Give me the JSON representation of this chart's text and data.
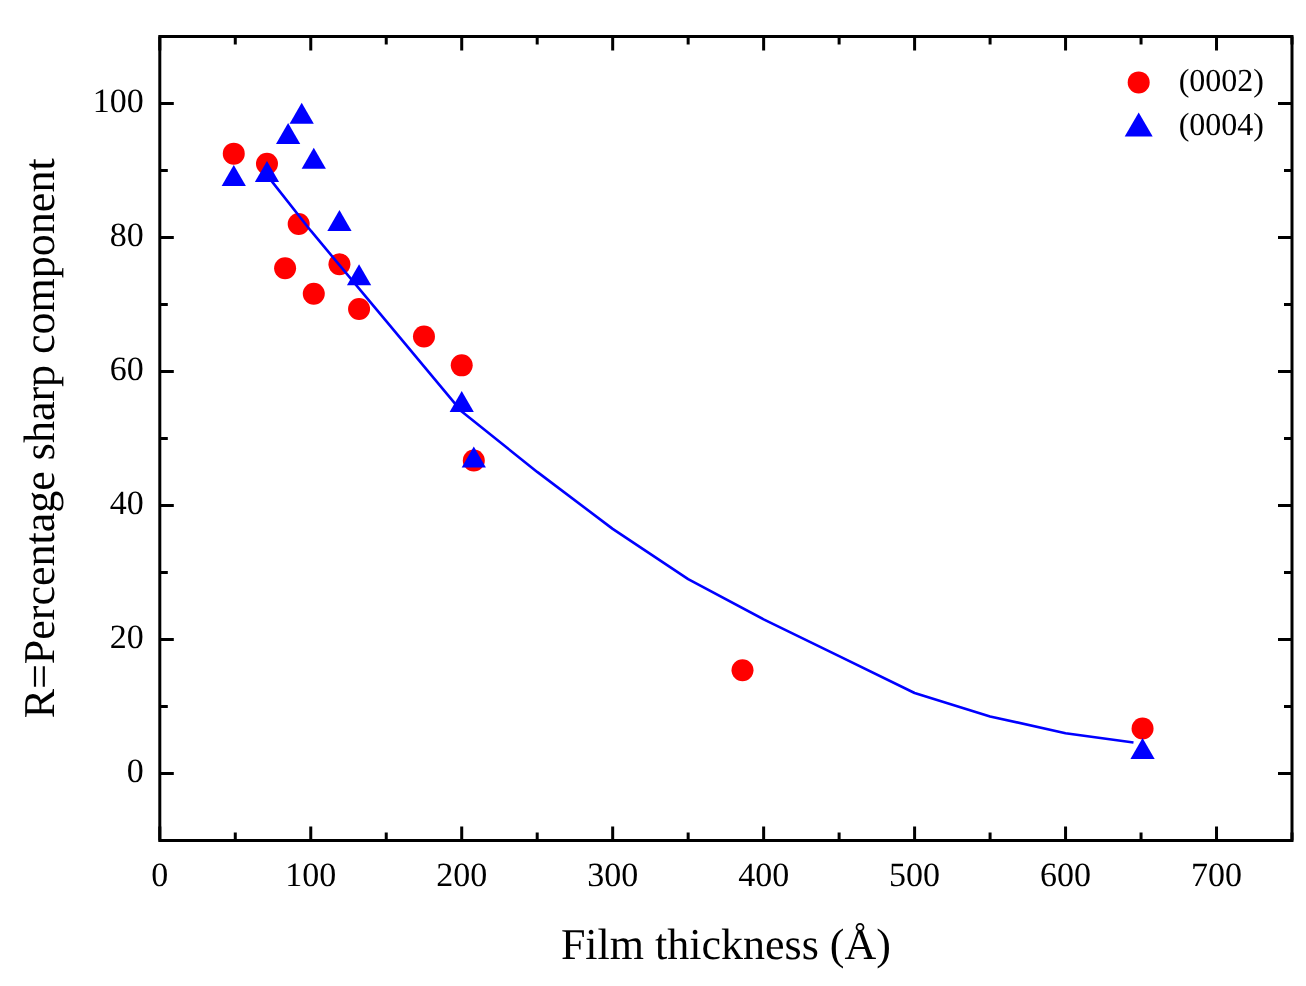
{
  "chart_data": {
    "type": "scatter",
    "xlabel": "Film thickness (Å)",
    "ylabel": "R=Percentage sharp component",
    "xlim": [
      0,
      750
    ],
    "xticks": [
      0,
      100,
      200,
      300,
      400,
      500,
      600,
      700
    ],
    "ylim": [
      -10,
      110
    ],
    "yticks": [
      0,
      20,
      40,
      60,
      80,
      100
    ],
    "grid": false,
    "legend": "top right",
    "series": [
      {
        "name": "(0002)",
        "color": "#ff0000",
        "marker": "circle",
        "x": [
          49,
          71,
          83,
          92,
          102,
          119,
          132,
          175,
          200,
          208,
          386,
          651
        ],
        "values": [
          92.5,
          91,
          75.4,
          82,
          71.6,
          76,
          69.3,
          65.2,
          60.9,
          46.7,
          15.4,
          6.7
        ]
      },
      {
        "name": "(0004)",
        "color": "#0000ff",
        "marker": "triangle",
        "x": [
          49,
          71,
          85,
          94,
          102,
          119,
          132,
          200,
          208,
          651
        ],
        "values": [
          88.7,
          89.3,
          95,
          98,
          91.3,
          82,
          73.9,
          55,
          46.7,
          3.2
        ]
      },
      {
        "type": "line",
        "color": "#0000ff",
        "marker": "none",
        "x": [
          72,
          100,
          150,
          200,
          250,
          300,
          350,
          400,
          450,
          500,
          550,
          600,
          645
        ],
        "values": [
          89,
          81,
          67.5,
          54,
          45,
          36.5,
          29,
          23,
          17.5,
          12,
          8.5,
          6,
          4.6
        ]
      }
    ]
  }
}
